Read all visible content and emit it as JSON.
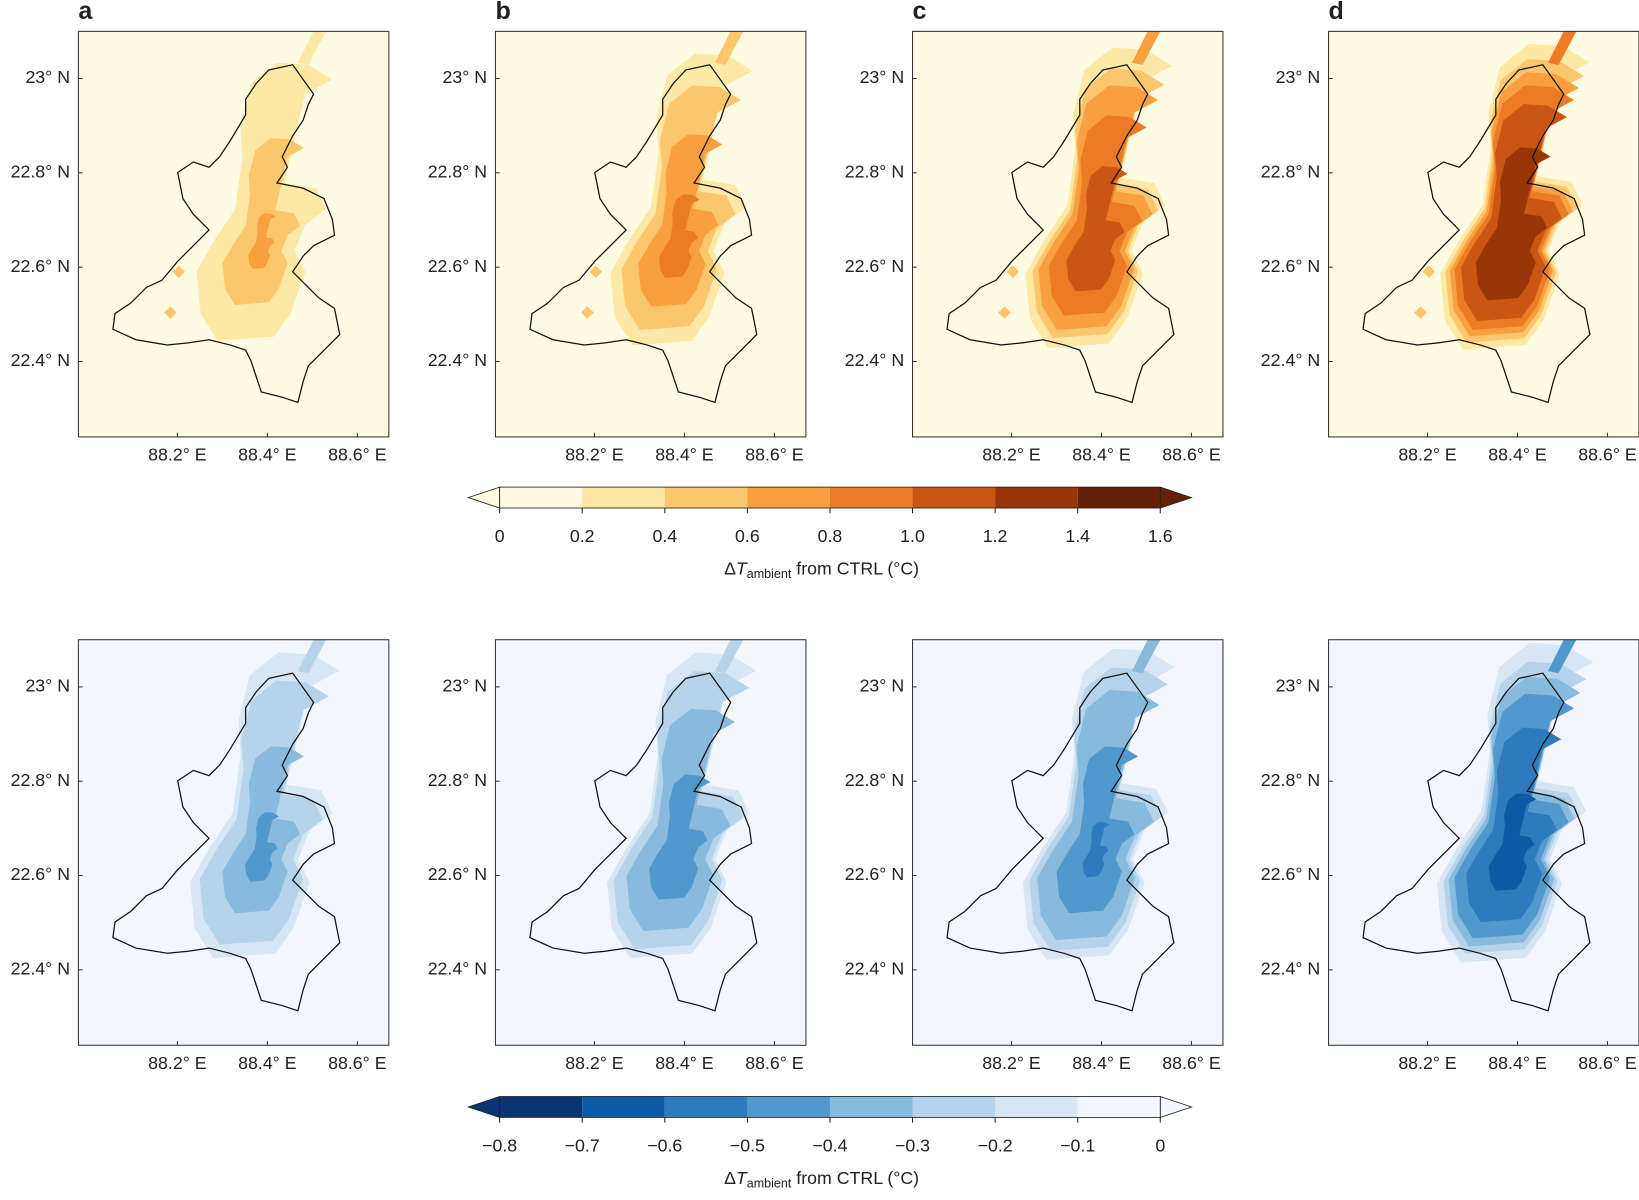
{
  "panel_labels": [
    "a",
    "b",
    "c",
    "d"
  ],
  "xlim": [
    87.98,
    88.67
  ],
  "ylim": [
    22.24,
    23.1
  ],
  "lat_ticks": [
    {
      "value": 23,
      "label": "23° N"
    },
    {
      "value": 22.8,
      "label": "22.8° N"
    },
    {
      "value": 22.6,
      "label": "22.6° N"
    },
    {
      "value": 22.4,
      "label": "22.4° N"
    }
  ],
  "lon_ticks": [
    {
      "value": 88.2,
      "label": "88.2° E"
    },
    {
      "value": 88.4,
      "label": "88.4° E"
    },
    {
      "value": 88.6,
      "label": "88.6° E"
    }
  ],
  "colorbars": [
    {
      "ticks": [
        0,
        0.2,
        0.4,
        0.6,
        0.8,
        {
          "value": 1,
          "label": "1.0"
        },
        1.2,
        1.4,
        1.6
      ],
      "colors": [
        "#fffbe2",
        "#fde8a6",
        "#fcc66c",
        "#f8a040",
        "#eb7b24",
        "#c95612",
        "#983607",
        "#652006"
      ],
      "label": {
        "symbol": "Δ",
        "var": "T",
        "sub": "ambient",
        "text": "from CTRL (°C)"
      }
    },
    {
      "ticks": [
        {
          "value": -0.8,
          "label": "−0.8"
        },
        {
          "value": -0.7,
          "label": "−0.7"
        },
        {
          "value": -0.6,
          "label": "−0.6"
        },
        {
          "value": -0.5,
          "label": "−0.5"
        },
        {
          "value": -0.4,
          "label": "−0.4"
        },
        {
          "value": -0.3,
          "label": "−0.3"
        },
        {
          "value": -0.2,
          "label": "−0.2"
        },
        {
          "value": -0.1,
          "label": "−0.1"
        },
        0
      ],
      "colors": [
        "#0a3470",
        "#0e58a4",
        "#2f7abc",
        "#5198cc",
        "#88badd",
        "#b5d3ea",
        "#d7e6f4",
        "#f3f7fd"
      ],
      "label": {
        "symbol": "Δ",
        "var": "T",
        "sub": "ambient",
        "text": "from CTRL (°C)"
      }
    }
  ]
}
